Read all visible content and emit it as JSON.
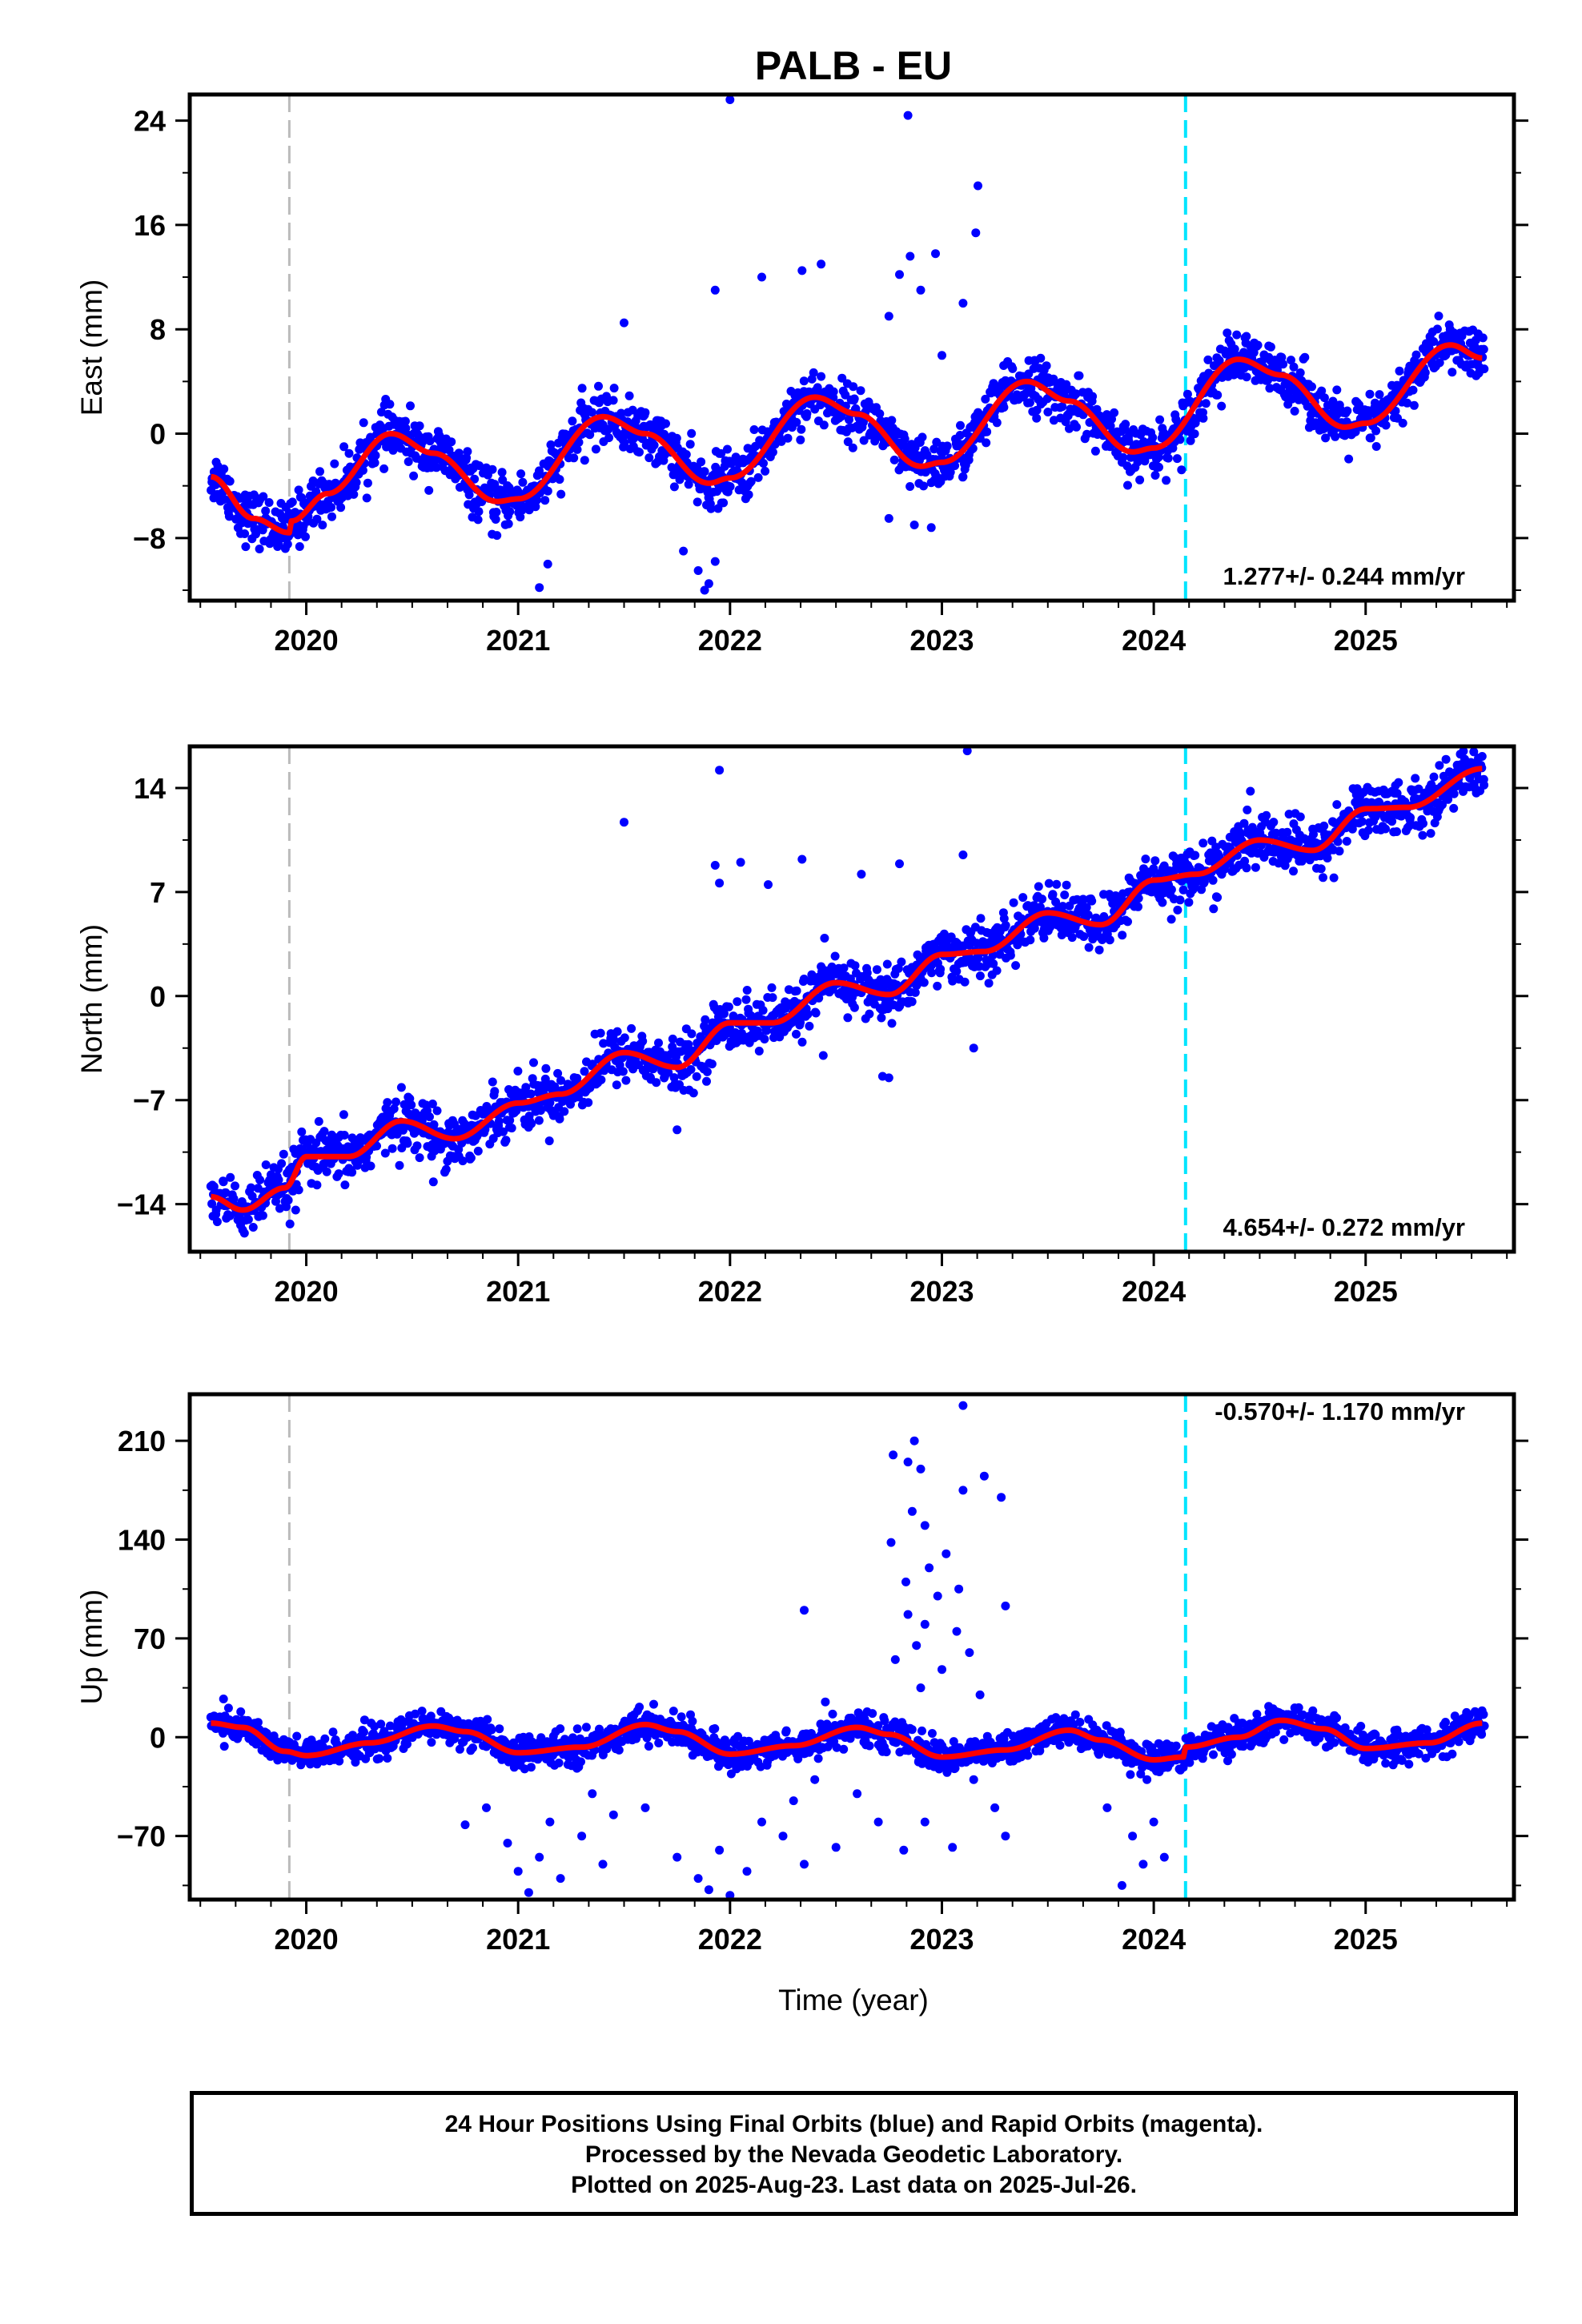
{
  "title": "PALB - EU",
  "xlabel": "Time (year)",
  "footer": [
    "24 Hour Positions Using Final Orbits (blue) and Rapid Orbits (magenta).",
    "Processed by the Nevada Geodetic Laboratory.",
    "Plotted on 2025-Aug-23. Last data on 2025-Jul-26."
  ],
  "colors": {
    "points": "#0000ff",
    "model": "#ff0000",
    "event_gray": "#bbbbbb",
    "event_cyan": "#00e5ff"
  },
  "chart_data": [
    {
      "type": "scatter",
      "component": "east",
      "ylabel": "East (mm)",
      "rate_label": "1.277+/- 0.244 mm/yr",
      "xlim": [
        2019.45,
        2025.7
      ],
      "ylim": [
        -12.8,
        26
      ],
      "yticks": [
        -8,
        0,
        8,
        16,
        24
      ],
      "xticks": [
        2020,
        2021,
        2022,
        2023,
        2024,
        2025
      ],
      "vlines": [
        2019.92,
        2024.15
      ],
      "model": {
        "x0": 2019.55,
        "offsets": [
          {
            "at": 2019.92,
            "value": -7.4
          }
        ],
        "start_value": -3.3,
        "anchors": [
          [
            2019.55,
            -3.3
          ],
          [
            2019.75,
            -6.5
          ],
          [
            2019.92,
            -7.6
          ],
          [
            2019.93,
            -6.7
          ],
          [
            2020.1,
            -4.6
          ],
          [
            2020.4,
            0.0
          ],
          [
            2020.6,
            -1.5
          ],
          [
            2020.9,
            -5.2
          ],
          [
            2021.0,
            -5.0
          ],
          [
            2021.4,
            1.3
          ],
          [
            2021.6,
            0.0
          ],
          [
            2021.9,
            -3.8
          ],
          [
            2022.0,
            -3.4
          ],
          [
            2022.4,
            2.8
          ],
          [
            2022.6,
            1.5
          ],
          [
            2022.9,
            -2.5
          ],
          [
            2023.0,
            -2.2
          ],
          [
            2023.4,
            4.0
          ],
          [
            2023.6,
            2.5
          ],
          [
            2023.9,
            -1.4
          ],
          [
            2024.0,
            -1.1
          ],
          [
            2024.4,
            5.7
          ],
          [
            2024.6,
            4.5
          ],
          [
            2024.9,
            0.5
          ],
          [
            2025.0,
            0.8
          ],
          [
            2025.4,
            6.8
          ],
          [
            2025.55,
            5.8
          ]
        ]
      },
      "scatter_sd": 1.0,
      "outliers": [
        [
          2022.0,
          25.6
        ],
        [
          2022.84,
          24.4
        ],
        [
          2023.17,
          19.0
        ],
        [
          2023.16,
          15.4
        ],
        [
          2021.93,
          11.0
        ],
        [
          2022.15,
          12.0
        ],
        [
          2022.34,
          12.5
        ],
        [
          2022.43,
          13.0
        ],
        [
          2022.8,
          12.2
        ],
        [
          2022.85,
          13.6
        ],
        [
          2022.97,
          13.8
        ],
        [
          2022.9,
          11.0
        ],
        [
          2023.1,
          10.0
        ],
        [
          2022.75,
          9.0
        ],
        [
          2021.5,
          8.5
        ],
        [
          2021.78,
          -9.0
        ],
        [
          2021.85,
          -10.5
        ],
        [
          2021.9,
          -11.5
        ],
        [
          2021.88,
          -12.0
        ],
        [
          2021.93,
          -9.8
        ],
        [
          2021.1,
          -11.8
        ],
        [
          2021.14,
          -10.0
        ],
        [
          2020.9,
          -7.8
        ],
        [
          2022.87,
          -7.0
        ],
        [
          2022.95,
          -7.2
        ],
        [
          2022.75,
          -6.5
        ],
        [
          2023.55,
          3.8
        ],
        [
          2023.0,
          6.0
        ]
      ]
    },
    {
      "type": "scatter",
      "component": "north",
      "ylabel": "North (mm)",
      "rate_label": "4.654+/- 0.272 mm/yr",
      "xlim": [
        2019.45,
        2025.7
      ],
      "ylim": [
        -17.2,
        16.8
      ],
      "yticks": [
        -14,
        -7,
        0,
        7,
        14
      ],
      "xticks": [
        2020,
        2021,
        2022,
        2023,
        2024,
        2025
      ],
      "vlines": [
        2019.92,
        2024.15
      ],
      "model": {
        "start_value": -13.5,
        "anchors": [
          [
            2019.55,
            -13.5
          ],
          [
            2019.7,
            -14.4
          ],
          [
            2019.9,
            -12.9
          ],
          [
            2020.0,
            -10.8
          ],
          [
            2020.2,
            -10.8
          ],
          [
            2020.45,
            -8.4
          ],
          [
            2020.7,
            -9.6
          ],
          [
            2021.0,
            -7.2
          ],
          [
            2021.2,
            -6.6
          ],
          [
            2021.5,
            -3.8
          ],
          [
            2021.75,
            -4.8
          ],
          [
            2022.0,
            -1.8
          ],
          [
            2022.2,
            -1.8
          ],
          [
            2022.5,
            0.9
          ],
          [
            2022.75,
            0.1
          ],
          [
            2023.0,
            2.8
          ],
          [
            2023.2,
            3.0
          ],
          [
            2023.5,
            5.6
          ],
          [
            2023.75,
            4.8
          ],
          [
            2024.0,
            7.8
          ],
          [
            2024.2,
            8.2
          ],
          [
            2024.5,
            10.5
          ],
          [
            2024.75,
            9.8
          ],
          [
            2025.0,
            12.6
          ],
          [
            2025.2,
            12.7
          ],
          [
            2025.55,
            15.3
          ]
        ]
      },
      "scatter_sd": 0.9,
      "outliers": [
        [
          2023.12,
          16.5
        ],
        [
          2021.95,
          15.2
        ],
        [
          2021.5,
          11.7
        ],
        [
          2022.34,
          9.2
        ],
        [
          2021.95,
          7.6
        ],
        [
          2021.93,
          8.8
        ],
        [
          2022.05,
          9.0
        ],
        [
          2022.18,
          7.5
        ],
        [
          2022.8,
          8.9
        ],
        [
          2023.1,
          9.5
        ],
        [
          2022.62,
          8.2
        ],
        [
          2023.15,
          -3.5
        ],
        [
          2022.75,
          -5.5
        ],
        [
          2022.72,
          -5.4
        ],
        [
          2021.75,
          -9.0
        ],
        [
          2020.6,
          -12.5
        ],
        [
          2019.95,
          -14.4
        ],
        [
          2022.44,
          -4.0
        ]
      ]
    },
    {
      "type": "scatter",
      "component": "up",
      "ylabel": "Up (mm)",
      "rate_label": "-0.570+/- 1.170 mm/yr",
      "xlim": [
        2019.45,
        2025.7
      ],
      "ylim": [
        -115,
        243
      ],
      "yticks": [
        -70,
        0,
        70,
        140,
        210
      ],
      "xticks": [
        2020,
        2021,
        2022,
        2023,
        2024,
        2025
      ],
      "vlines": [
        2019.92,
        2024.15
      ],
      "model": {
        "start_value": 10.0,
        "anchors": [
          [
            2019.55,
            10.0
          ],
          [
            2019.7,
            7.0
          ],
          [
            2019.9,
            -10.0
          ],
          [
            2020.0,
            -13.0
          ],
          [
            2020.3,
            -4.0
          ],
          [
            2020.6,
            8.0
          ],
          [
            2020.75,
            4.0
          ],
          [
            2021.0,
            -11.0
          ],
          [
            2021.3,
            -7.0
          ],
          [
            2021.6,
            9.0
          ],
          [
            2021.75,
            4.0
          ],
          [
            2022.0,
            -12.0
          ],
          [
            2022.3,
            -6.0
          ],
          [
            2022.6,
            7.0
          ],
          [
            2022.75,
            2.0
          ],
          [
            2023.0,
            -14.0
          ],
          [
            2023.3,
            -9.0
          ],
          [
            2023.6,
            5.0
          ],
          [
            2023.75,
            -2.0
          ],
          [
            2024.0,
            -16.0
          ],
          [
            2024.14,
            -14.0
          ],
          [
            2024.15,
            -7.0
          ],
          [
            2024.4,
            0.0
          ],
          [
            2024.6,
            12.0
          ],
          [
            2024.8,
            6.0
          ],
          [
            2025.0,
            -8.0
          ],
          [
            2025.3,
            -4.0
          ],
          [
            2025.55,
            10.0
          ]
        ]
      },
      "scatter_sd": 5.5,
      "outliers": [
        [
          2023.1,
          235
        ],
        [
          2022.77,
          200
        ],
        [
          2022.87,
          210
        ],
        [
          2022.9,
          190
        ],
        [
          2022.84,
          195
        ],
        [
          2023.2,
          185
        ],
        [
          2023.1,
          175
        ],
        [
          2023.28,
          170
        ],
        [
          2022.86,
          160
        ],
        [
          2022.92,
          150
        ],
        [
          2022.76,
          138
        ],
        [
          2023.02,
          130
        ],
        [
          2022.94,
          120
        ],
        [
          2022.83,
          110
        ],
        [
          2023.08,
          105
        ],
        [
          2022.98,
          100
        ],
        [
          2023.3,
          93
        ],
        [
          2022.84,
          87
        ],
        [
          2022.92,
          80
        ],
        [
          2023.07,
          75
        ],
        [
          2022.88,
          65
        ],
        [
          2022.78,
          55
        ],
        [
          2023.13,
          60
        ],
        [
          2023.0,
          48
        ],
        [
          2022.35,
          90
        ],
        [
          2022.9,
          35
        ],
        [
          2023.18,
          30
        ],
        [
          2022.45,
          25
        ],
        [
          2021.0,
          -95
        ],
        [
          2021.05,
          -110
        ],
        [
          2021.1,
          -85
        ],
        [
          2020.95,
          -75
        ],
        [
          2021.2,
          -100
        ],
        [
          2020.85,
          -50
        ],
        [
          2021.3,
          -70
        ],
        [
          2021.15,
          -60
        ],
        [
          2021.4,
          -90
        ],
        [
          2021.45,
          -55
        ],
        [
          2020.75,
          -62
        ],
        [
          2021.35,
          -40
        ],
        [
          2021.6,
          -50
        ],
        [
          2021.85,
          -100
        ],
        [
          2021.9,
          -108
        ],
        [
          2022.0,
          -112
        ],
        [
          2021.95,
          -80
        ],
        [
          2022.08,
          -95
        ],
        [
          2021.75,
          -85
        ],
        [
          2022.15,
          -60
        ],
        [
          2022.25,
          -70
        ],
        [
          2022.35,
          -90
        ],
        [
          2022.3,
          -45
        ],
        [
          2022.4,
          -30
        ],
        [
          2022.5,
          -78
        ],
        [
          2022.6,
          -40
        ],
        [
          2022.7,
          -60
        ],
        [
          2022.82,
          -80
        ],
        [
          2022.92,
          -60
        ],
        [
          2023.05,
          -78
        ],
        [
          2023.15,
          -30
        ],
        [
          2023.25,
          -50
        ],
        [
          2023.3,
          -70
        ],
        [
          2023.85,
          -105
        ],
        [
          2023.95,
          -90
        ],
        [
          2023.78,
          -50
        ],
        [
          2023.9,
          -70
        ],
        [
          2024.05,
          -85
        ],
        [
          2024.0,
          -60
        ]
      ]
    }
  ]
}
